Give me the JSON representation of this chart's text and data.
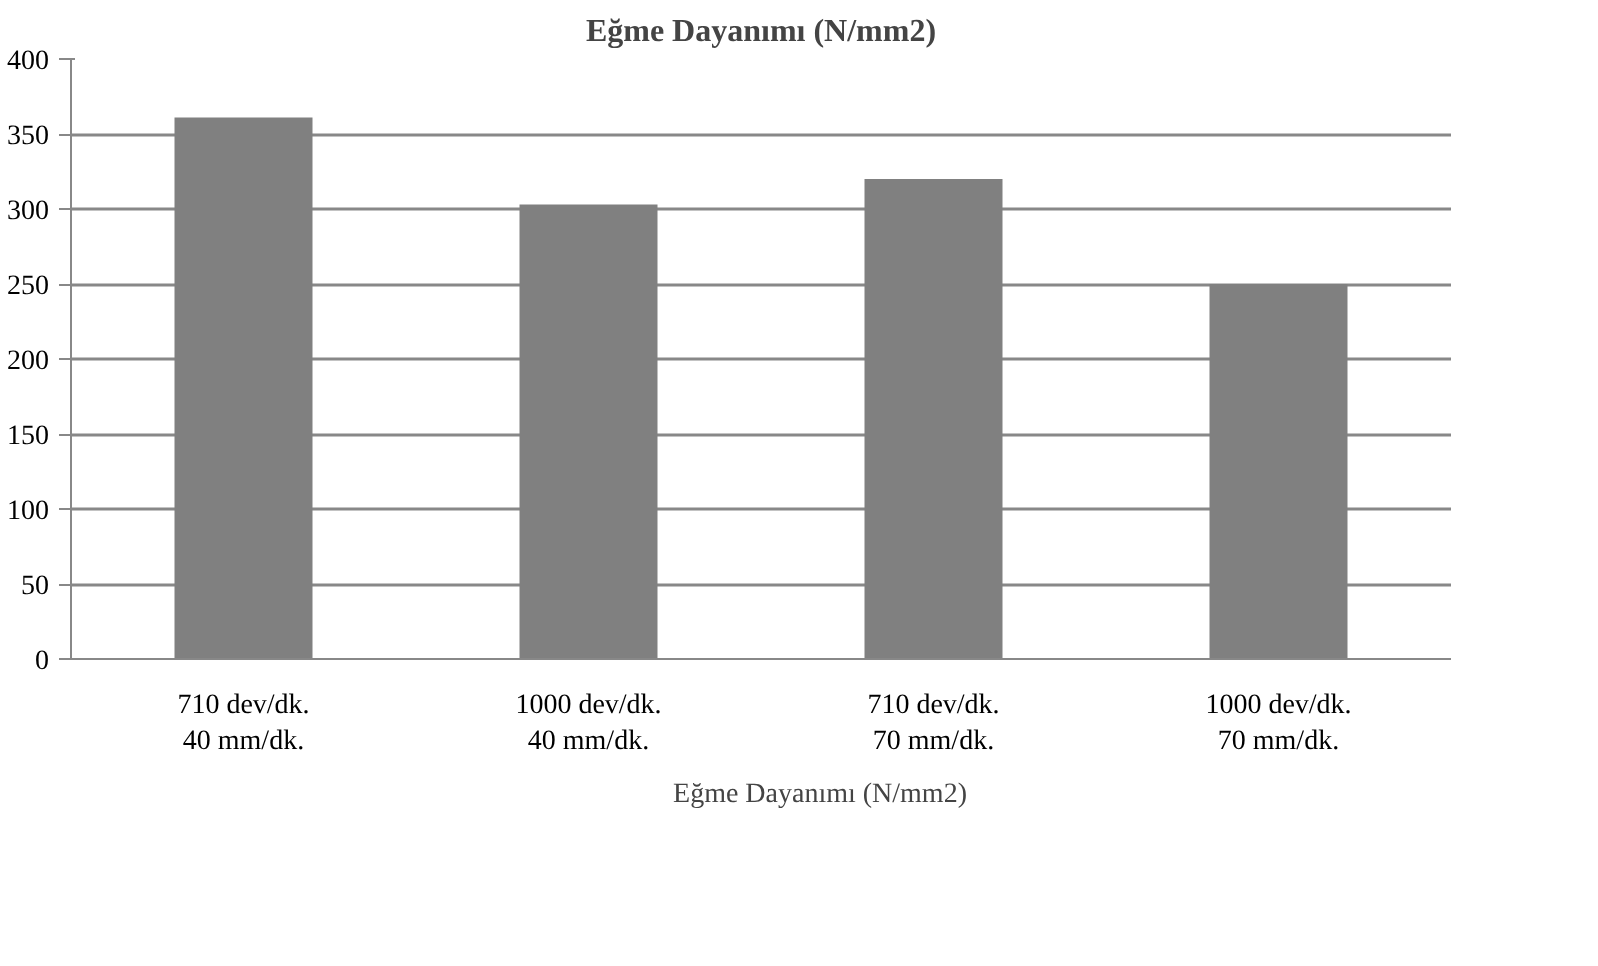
{
  "chart_data": {
    "type": "bar",
    "title": "Eğme Dayanımı (N/mm2)",
    "categories": [
      "710 dev/dk.\n40 mm/dk.",
      "1000 dev/dk.\n40 mm/dk.",
      "710 dev/dk.\n70 mm/dk.",
      "1000 dev/dk.\n70 mm/dk."
    ],
    "series": [
      {
        "name": "Eğme Dayanımı (N/mm2)",
        "color": "#808080",
        "values": [
          361,
          303,
          320,
          250
        ]
      }
    ],
    "ylim": [
      0,
      400
    ],
    "yticks": [
      0,
      50,
      100,
      150,
      200,
      250,
      300,
      350,
      400
    ],
    "grid": "y",
    "legend": "bottom"
  }
}
